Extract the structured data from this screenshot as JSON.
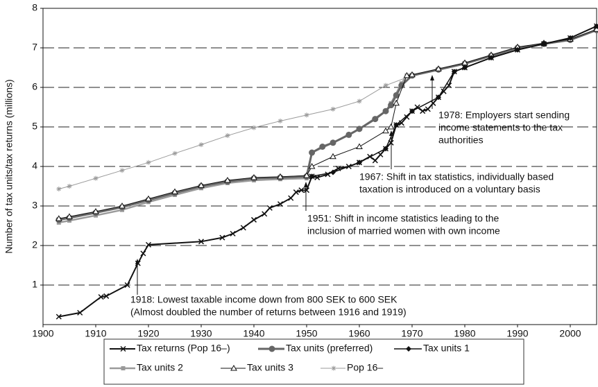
{
  "chart_data": {
    "type": "line",
    "y_label": "Number of tax units/tax returns (millions)",
    "xlim": [
      1900,
      2005
    ],
    "xticks": [
      1900,
      1910,
      1920,
      1930,
      1940,
      1950,
      1960,
      1970,
      1980,
      1990,
      2000
    ],
    "ylim": [
      0,
      8
    ],
    "yticks": [
      1,
      2,
      3,
      4,
      5,
      6,
      7,
      8
    ],
    "grid": true,
    "series": [
      {
        "name": "Tax returns (Pop 16–)",
        "color": "#111111",
        "marker": "x",
        "x": [
          1903,
          1907,
          1911,
          1912,
          1916,
          1918,
          1919,
          1920,
          1930,
          1934,
          1936,
          1938,
          1940,
          1942,
          1943,
          1945,
          1947,
          1948,
          1949,
          1950,
          1951,
          1952,
          1954,
          1956,
          1958,
          1960,
          1962,
          1963,
          1964,
          1965,
          1966,
          1967,
          1968,
          1969,
          1970,
          1971,
          1972,
          1973,
          1974,
          1975,
          1976,
          1977,
          1978,
          1980,
          1985,
          1990,
          1995,
          2000,
          2005
        ],
        "values": [
          0.2,
          0.3,
          0.7,
          0.72,
          1.0,
          1.55,
          1.8,
          2.02,
          2.1,
          2.2,
          2.3,
          2.45,
          2.65,
          2.8,
          2.95,
          3.05,
          3.2,
          3.35,
          3.4,
          3.4,
          3.75,
          3.72,
          3.8,
          3.95,
          4.0,
          4.1,
          4.25,
          4.15,
          4.3,
          4.45,
          4.6,
          5.05,
          5.1,
          5.25,
          5.4,
          5.5,
          5.4,
          5.45,
          5.6,
          5.75,
          5.9,
          6.05,
          6.4,
          6.5,
          6.75,
          6.95,
          7.1,
          7.25,
          7.55
        ]
      },
      {
        "name": "Tax units (preferred)",
        "color": "#666666",
        "marker": "circle",
        "x": [
          1903,
          1905,
          1910,
          1915,
          1920,
          1925,
          1930,
          1935,
          1940,
          1945,
          1950,
          1951,
          1953,
          1955,
          1958,
          1960,
          1963,
          1965,
          1966,
          1967,
          1968,
          1970,
          1975,
          1980,
          1985,
          1990,
          1995,
          2000,
          2005
        ],
        "values": [
          2.65,
          2.7,
          2.83,
          2.97,
          3.15,
          3.33,
          3.5,
          3.62,
          3.7,
          3.72,
          3.75,
          4.35,
          4.5,
          4.6,
          4.8,
          4.95,
          5.2,
          5.4,
          5.55,
          5.8,
          6.05,
          6.3,
          6.45,
          6.6,
          6.8,
          7.0,
          7.1,
          7.2,
          7.45
        ]
      },
      {
        "name": "Tax units 1",
        "color": "#111111",
        "marker": "diamond",
        "x": [
          1951,
          1955,
          1960,
          1965,
          1967,
          1970,
          1975,
          1978,
          1980,
          1985,
          1990,
          1995,
          2000,
          2005
        ],
        "values": [
          3.75,
          3.85,
          4.1,
          4.45,
          5.05,
          5.4,
          5.75,
          6.4,
          6.5,
          6.75,
          6.95,
          7.1,
          7.25,
          7.55
        ]
      },
      {
        "name": "Tax units 2",
        "color": "#9a9a9a",
        "marker": "square",
        "x": [
          1903,
          1905,
          1910,
          1915,
          1920,
          1925,
          1930,
          1935,
          1940,
          1945,
          1950,
          1951,
          1955,
          1960,
          1965,
          1966,
          1968,
          1969,
          1970,
          1975,
          1980,
          1985,
          1990,
          1995,
          2000,
          2005
        ],
        "values": [
          2.58,
          2.63,
          2.76,
          2.9,
          3.1,
          3.28,
          3.45,
          3.58,
          3.65,
          3.68,
          3.7,
          4.35,
          4.6,
          4.95,
          5.4,
          5.6,
          6.1,
          6.3,
          6.3,
          6.45,
          6.6,
          6.8,
          7.0,
          7.1,
          7.2,
          7.45
        ]
      },
      {
        "name": "Tax units 3",
        "color": "#111111",
        "marker": "triangle",
        "x": [
          1903,
          1905,
          1910,
          1915,
          1920,
          1925,
          1930,
          1935,
          1940,
          1945,
          1950,
          1951,
          1955,
          1960,
          1965,
          1966,
          1967,
          1969,
          1970,
          1975,
          1980,
          1985,
          1990,
          1995,
          2000,
          2005
        ],
        "values": [
          2.68,
          2.73,
          2.86,
          3.0,
          3.18,
          3.36,
          3.52,
          3.65,
          3.72,
          3.74,
          3.77,
          4.0,
          4.25,
          4.5,
          4.9,
          5.0,
          5.6,
          6.3,
          6.32,
          6.47,
          6.62,
          6.82,
          7.02,
          7.12,
          7.22,
          7.47
        ]
      },
      {
        "name": "Pop 16–",
        "color": "#9a9a9a",
        "marker": "star",
        "x": [
          1903,
          1905,
          1910,
          1915,
          1920,
          1925,
          1930,
          1935,
          1940,
          1945,
          1950,
          1955,
          1960,
          1965,
          1970,
          1975,
          1980,
          1985,
          1990,
          1995,
          2000,
          2005
        ],
        "values": [
          3.43,
          3.5,
          3.7,
          3.9,
          4.1,
          4.33,
          4.55,
          4.78,
          4.98,
          5.15,
          5.3,
          5.45,
          5.65,
          6.05,
          6.3,
          6.45,
          6.6,
          6.8,
          7.0,
          7.1,
          7.2,
          7.45
        ]
      }
    ],
    "annotations": [
      [
        "1918: Lowest taxable income down from 800 SEK to 600 SEK",
        "(Almost doubled the number of returns between 1916 and 1919)"
      ],
      [
        "1951: Shift in income statistics leading to the",
        "inclusion of married women with own income"
      ],
      [
        "1967: Shift in tax statistics, individually based",
        "taxation is introduced on a voluntary basis"
      ],
      [
        "1978: Employers start sending",
        "income statements to the tax",
        "authorities"
      ]
    ]
  }
}
